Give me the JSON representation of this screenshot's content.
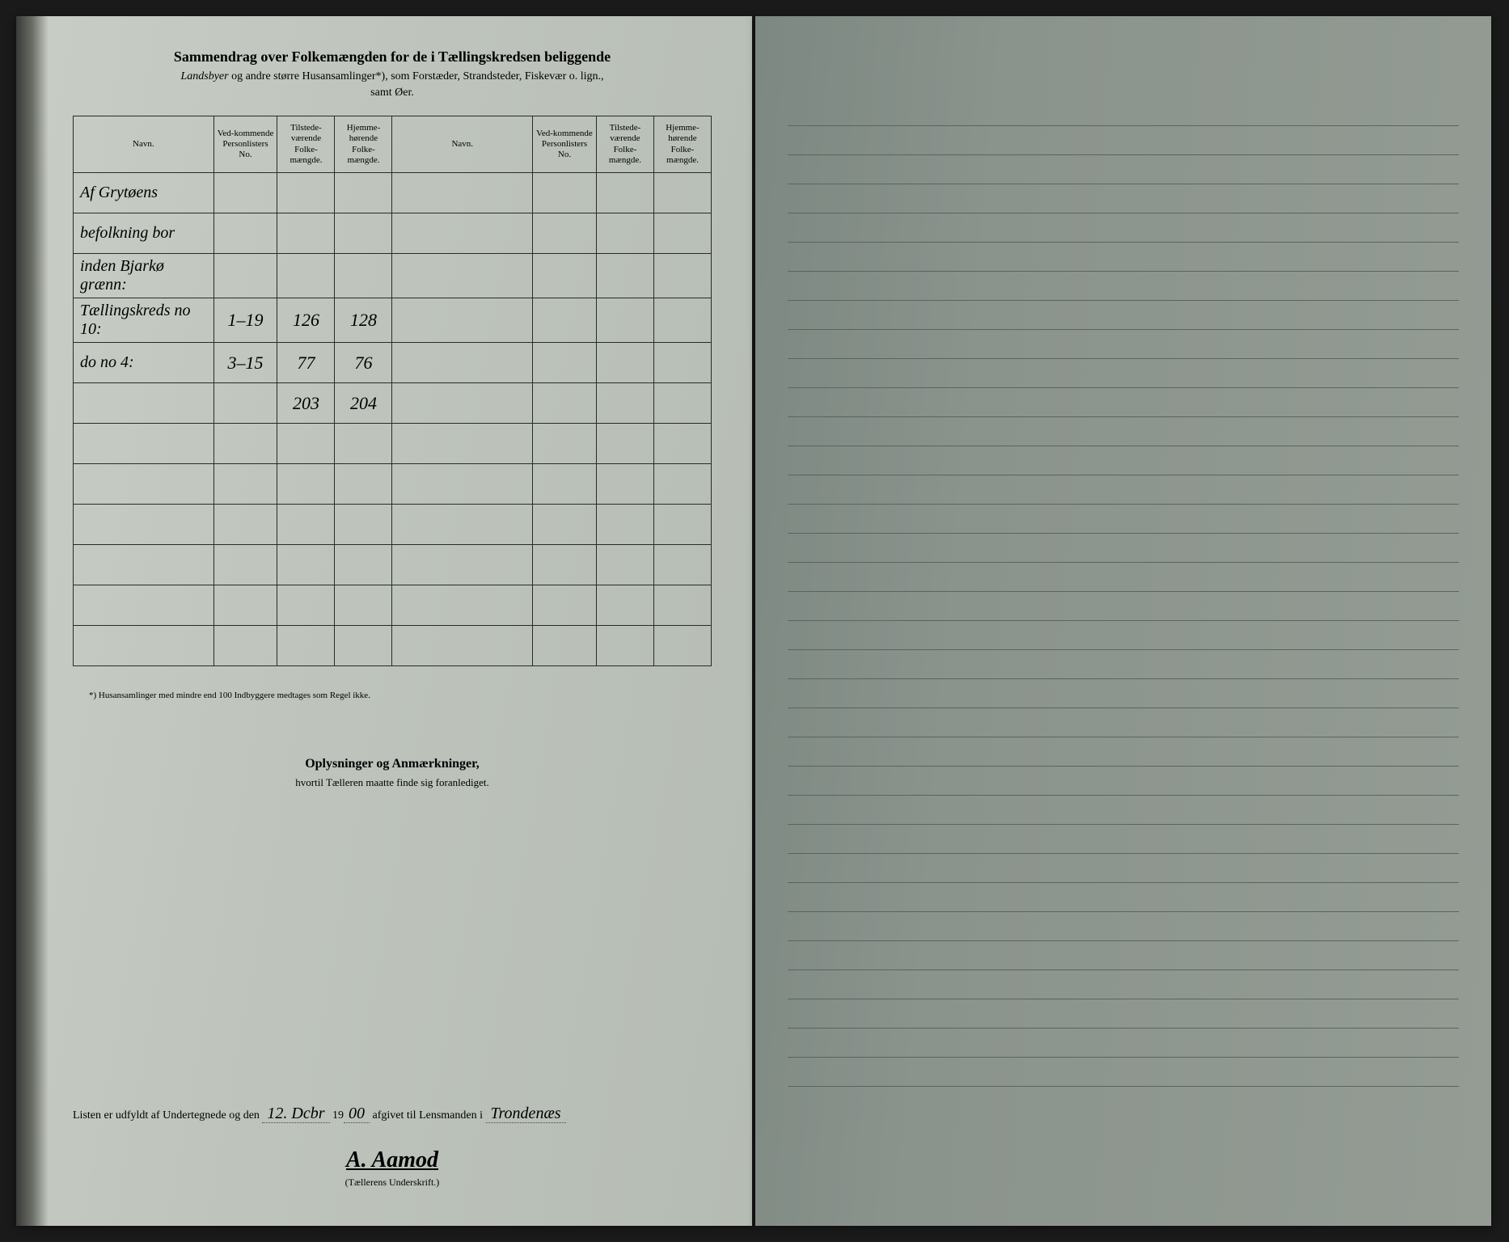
{
  "header": {
    "title": "Sammendrag over Folkemængden for de i Tællingskredsen beliggende",
    "subtitle_italic": "Landsbyer",
    "subtitle_rest": " og andre større Husansamlinger*), som Forstæder, Strandsteder, Fiskevær o. lign.,",
    "subtitle2": "samt Øer."
  },
  "table": {
    "columns": {
      "navn": "Navn.",
      "personlister": "Ved-kommende Personlisters No.",
      "tilstede": "Tilstede-værende Folke-mængde.",
      "hjemme": "Hjemme-hørende Folke-mængde."
    },
    "rows": [
      {
        "navn": "Af Grytøens",
        "no": "",
        "til": "",
        "hjm": ""
      },
      {
        "navn": "befolkning bor",
        "no": "",
        "til": "",
        "hjm": ""
      },
      {
        "navn": "inden Bjarkø grænn:",
        "no": "",
        "til": "",
        "hjm": ""
      },
      {
        "navn": "Tællingskreds no 10:",
        "no": "1–19",
        "til": "126",
        "hjm": "128"
      },
      {
        "navn": "do    no 4:",
        "no": "3–15",
        "til": "77",
        "hjm": "76"
      }
    ],
    "totals": {
      "til": "203",
      "hjm": "204"
    },
    "empty_rows": 6
  },
  "footnote": "*) Husansamlinger med mindre end 100 Indbyggere medtages som Regel ikke.",
  "section2": {
    "title": "Oplysninger og Anmærkninger,",
    "sub": "hvortil Tælleren maatte finde sig foranlediget."
  },
  "bottom": {
    "prefix": "Listen er udfyldt af Undertegnede og den",
    "date_hw": "12. Dcbr",
    "year_prefix": "19",
    "year_hw": "00",
    "mid": "afgivet til Lensmanden i",
    "place_hw": "Trondenæs",
    "signature": "A. Aamod",
    "sig_label": "(Tællerens Underskrift.)"
  },
  "right_page": {
    "line_count": 34
  },
  "colors": {
    "left_bg": "#bfc5bd",
    "right_bg": "#8a938c",
    "ink": "#2a2a2a",
    "rule": "#5a6560"
  }
}
